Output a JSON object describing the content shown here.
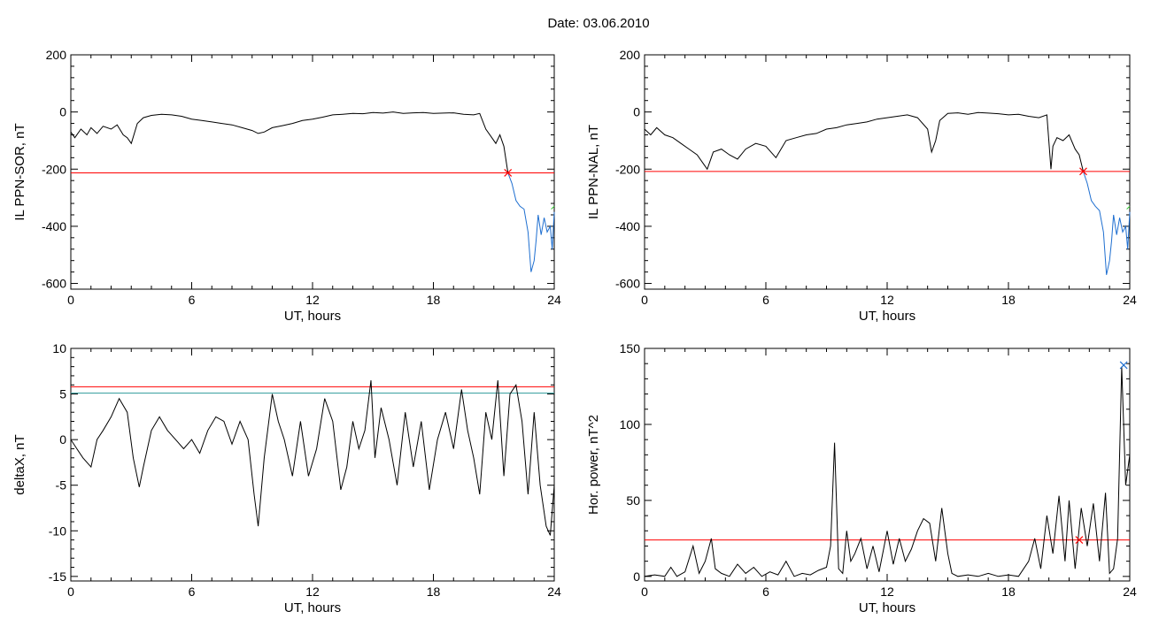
{
  "page": {
    "title": "Date:  03.06.2010"
  },
  "colors": {
    "threshold": "#ff0000",
    "secondary_threshold": "#3aa0a0",
    "segment": "#1f6fd0",
    "marker_green": "#33cc33",
    "trace": "#000000"
  },
  "chart_data": [
    {
      "type": "line",
      "xlabel": "UT, hours",
      "ylabel": "IL PPN-SOR, nT",
      "xlim": [
        0,
        24
      ],
      "ylim": [
        -620,
        200
      ],
      "xticks": [
        0,
        6,
        12,
        18,
        24
      ],
      "yticks": [
        200,
        0,
        -200,
        -400,
        -600
      ],
      "threshold": -213,
      "marker": {
        "x": 21.7,
        "y": -213
      },
      "series": [
        {
          "color": "#000000",
          "x": [
            0,
            0.2,
            0.5,
            0.8,
            1.0,
            1.3,
            1.6,
            2.0,
            2.3,
            2.6,
            2.8,
            3.0,
            3.3,
            3.6,
            4.0,
            4.5,
            5.0,
            5.5,
            6.0,
            6.5,
            7.0,
            7.5,
            8.0,
            8.5,
            9.0,
            9.3,
            9.6,
            10.0,
            10.5,
            11.0,
            11.5,
            12.0,
            12.5,
            13.0,
            13.5,
            14.0,
            14.5,
            15.0,
            15.5,
            16.0,
            16.5,
            17.0,
            17.5,
            18.0,
            18.5,
            19.0,
            19.5,
            20.0,
            20.3,
            20.6,
            20.9,
            21.1,
            21.3,
            21.5,
            21.7
          ],
          "y": [
            -70,
            -90,
            -60,
            -80,
            -55,
            -75,
            -50,
            -60,
            -45,
            -80,
            -90,
            -110,
            -40,
            -20,
            -12,
            -8,
            -10,
            -15,
            -25,
            -30,
            -35,
            -40,
            -45,
            -55,
            -65,
            -75,
            -70,
            -55,
            -48,
            -40,
            -30,
            -25,
            -18,
            -10,
            -8,
            -5,
            -6,
            -2,
            -4,
            0,
            -5,
            -3,
            -2,
            -5,
            -4,
            -3,
            -8,
            -10,
            -5,
            -60,
            -90,
            -110,
            -80,
            -120,
            -213
          ]
        },
        {
          "color": "#1f6fd0",
          "x": [
            21.7,
            21.9,
            22.1,
            22.3,
            22.5,
            22.7,
            22.85,
            23.0,
            23.1,
            23.2,
            23.35,
            23.5,
            23.65,
            23.8,
            23.9,
            24.0
          ],
          "y": [
            -213,
            -250,
            -310,
            -330,
            -340,
            -420,
            -560,
            -520,
            -450,
            -360,
            -430,
            -370,
            -420,
            -400,
            -480,
            -350
          ]
        },
        {
          "color": "#33cc33",
          "x": [
            23.85,
            24.0
          ],
          "y": [
            -340,
            -330
          ]
        }
      ]
    },
    {
      "type": "line",
      "xlabel": "UT, hours",
      "ylabel": "IL PPN-NAL, nT",
      "xlim": [
        0,
        24
      ],
      "ylim": [
        -620,
        200
      ],
      "xticks": [
        0,
        6,
        12,
        18,
        24
      ],
      "yticks": [
        200,
        0,
        -200,
        -400,
        -600
      ],
      "threshold": -208,
      "marker": {
        "x": 21.7,
        "y": -208
      },
      "series": [
        {
          "color": "#000000",
          "x": [
            0,
            0.3,
            0.6,
            1.0,
            1.4,
            1.8,
            2.2,
            2.6,
            2.9,
            3.1,
            3.4,
            3.8,
            4.2,
            4.6,
            5.0,
            5.5,
            6.0,
            6.5,
            7.0,
            7.5,
            8.0,
            8.5,
            9.0,
            9.5,
            10.0,
            10.5,
            11.0,
            11.5,
            12.0,
            12.5,
            13.0,
            13.5,
            14.0,
            14.2,
            14.4,
            14.6,
            15.0,
            15.5,
            16.0,
            16.5,
            17.0,
            17.5,
            18.0,
            18.5,
            19.0,
            19.5,
            19.9,
            20.1,
            20.2,
            20.4,
            20.7,
            21.0,
            21.3,
            21.5,
            21.7
          ],
          "y": [
            -60,
            -80,
            -55,
            -80,
            -90,
            -110,
            -130,
            -150,
            -180,
            -200,
            -140,
            -130,
            -150,
            -165,
            -130,
            -110,
            -120,
            -160,
            -100,
            -90,
            -80,
            -75,
            -60,
            -55,
            -45,
            -40,
            -35,
            -25,
            -20,
            -15,
            -10,
            -20,
            -60,
            -140,
            -100,
            -30,
            -5,
            -3,
            -8,
            -2,
            -4,
            -6,
            -10,
            -8,
            -15,
            -20,
            -10,
            -200,
            -120,
            -90,
            -100,
            -80,
            -130,
            -150,
            -208
          ]
        },
        {
          "color": "#1f6fd0",
          "x": [
            21.7,
            21.9,
            22.1,
            22.3,
            22.5,
            22.7,
            22.85,
            23.0,
            23.1,
            23.2,
            23.35,
            23.5,
            23.65,
            23.8,
            23.9,
            24.0
          ],
          "y": [
            -208,
            -250,
            -310,
            -330,
            -345,
            -420,
            -570,
            -520,
            -450,
            -360,
            -430,
            -370,
            -420,
            -400,
            -480,
            -350
          ]
        },
        {
          "color": "#33cc33",
          "x": [
            23.85,
            24.0
          ],
          "y": [
            -340,
            -330
          ]
        }
      ]
    },
    {
      "type": "line",
      "xlabel": "UT, hours",
      "ylabel": "deltaX, nT",
      "xlim": [
        0,
        24
      ],
      "ylim": [
        -15.5,
        10
      ],
      "xticks": [
        0,
        6,
        12,
        18,
        24
      ],
      "yticks": [
        10,
        5,
        0,
        -5,
        -10,
        -15
      ],
      "threshold": 5.8,
      "threshold2": 5.1,
      "series": [
        {
          "color": "#000000",
          "x": [
            0,
            0.3,
            0.6,
            1.0,
            1.3,
            1.6,
            2.0,
            2.4,
            2.8,
            3.1,
            3.4,
            3.6,
            4.0,
            4.4,
            4.8,
            5.2,
            5.6,
            6.0,
            6.4,
            6.8,
            7.2,
            7.6,
            8.0,
            8.4,
            8.8,
            9.1,
            9.3,
            9.6,
            10.0,
            10.3,
            10.6,
            11.0,
            11.4,
            11.8,
            12.2,
            12.6,
            13.0,
            13.4,
            13.7,
            14.0,
            14.3,
            14.6,
            14.9,
            15.1,
            15.4,
            15.8,
            16.2,
            16.6,
            17.0,
            17.4,
            17.8,
            18.2,
            18.6,
            19.0,
            19.4,
            19.7,
            20.0,
            20.3,
            20.6,
            20.9,
            21.2,
            21.5,
            21.8,
            22.1,
            22.4,
            22.7,
            23.0,
            23.3,
            23.6,
            23.8,
            24.0
          ],
          "y": [
            0,
            -1,
            -2,
            -3,
            0,
            1,
            2.5,
            4.5,
            3,
            -2,
            -5.2,
            -3,
            1,
            2.5,
            1,
            0,
            -1,
            0,
            -1.5,
            1,
            2.5,
            2,
            -0.5,
            2,
            0,
            -6,
            -9.5,
            -2,
            5,
            2,
            0,
            -4,
            2,
            -4,
            -1,
            4.5,
            2,
            -5.5,
            -3,
            2,
            -1,
            1,
            6.5,
            -2,
            3.5,
            0,
            -5,
            3,
            -3,
            2,
            -5.5,
            0,
            3,
            -1,
            5.5,
            1,
            -2,
            -6,
            3,
            0,
            6.5,
            -4,
            5,
            6,
            2,
            -6,
            3,
            -5,
            -9.5,
            -10.5,
            -5
          ]
        }
      ]
    },
    {
      "type": "line",
      "xlabel": "UT, hours",
      "ylabel": "Hor. power, nT^2",
      "xlim": [
        0,
        24
      ],
      "ylim": [
        -3,
        150
      ],
      "xticks": [
        0,
        6,
        12,
        18,
        24
      ],
      "yticks": [
        150,
        100,
        50,
        0
      ],
      "threshold": 24,
      "marker": {
        "x": 21.5,
        "y": 24
      },
      "peak_marker": {
        "x": 23.7,
        "y": 139
      },
      "series": [
        {
          "color": "#000000",
          "x": [
            0,
            0.5,
            1.0,
            1.3,
            1.6,
            2.0,
            2.4,
            2.7,
            3.0,
            3.3,
            3.5,
            3.8,
            4.2,
            4.6,
            5.0,
            5.4,
            5.8,
            6.2,
            6.6,
            7.0,
            7.4,
            7.8,
            8.2,
            8.6,
            9.0,
            9.2,
            9.4,
            9.6,
            9.8,
            10.0,
            10.2,
            10.4,
            10.7,
            11.0,
            11.3,
            11.6,
            12.0,
            12.3,
            12.6,
            12.9,
            13.2,
            13.5,
            13.8,
            14.1,
            14.4,
            14.7,
            15.0,
            15.2,
            15.5,
            16.0,
            16.5,
            17.0,
            17.5,
            18.0,
            18.5,
            19.0,
            19.3,
            19.6,
            19.9,
            20.2,
            20.5,
            20.8,
            21.0,
            21.3,
            21.6,
            21.9,
            22.2,
            22.5,
            22.8,
            23.0,
            23.2,
            23.4,
            23.6,
            23.8,
            24.0
          ],
          "y": [
            0,
            1,
            0,
            6,
            0,
            3,
            20,
            2,
            10,
            25,
            5,
            2,
            0,
            8,
            2,
            6,
            0,
            3,
            1,
            10,
            0,
            2,
            1,
            4,
            6,
            20,
            88,
            5,
            2,
            30,
            10,
            15,
            25,
            5,
            20,
            3,
            30,
            8,
            25,
            10,
            18,
            30,
            38,
            35,
            10,
            45,
            15,
            2,
            0,
            1,
            0,
            2,
            0,
            1,
            0,
            10,
            25,
            5,
            40,
            15,
            53,
            10,
            50,
            5,
            45,
            20,
            48,
            10,
            55,
            2,
            5,
            25,
            138,
            60,
            80
          ]
        }
      ]
    }
  ]
}
